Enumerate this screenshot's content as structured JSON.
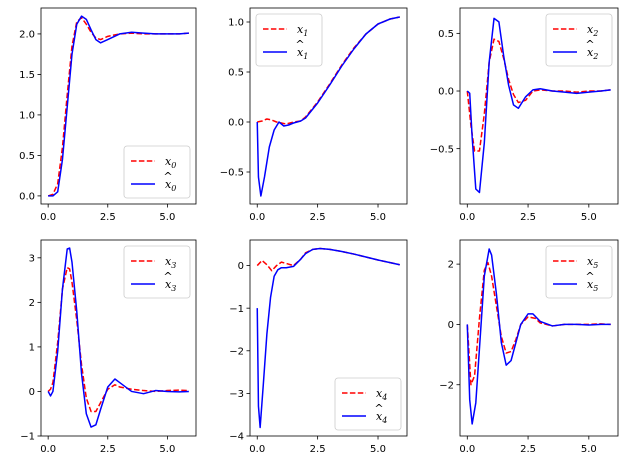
{
  "chart_data": [
    {
      "type": "line",
      "xlim": [
        -0.3,
        6.2
      ],
      "ylim": [
        -0.1,
        2.32
      ],
      "xticks": [
        0,
        2.5,
        5
      ],
      "xtick_labels": [
        "0.0",
        "2.5",
        "5.0"
      ],
      "yticks": [
        0,
        0.5,
        1.0,
        1.5,
        2.0
      ],
      "ytick_labels": [
        "0.0",
        "0.5",
        "1.0",
        "1.5",
        "2.0"
      ],
      "legend_position": "bottom-right",
      "series": [
        {
          "name": "x0",
          "label_base": "x",
          "label_sub": "0",
          "hat": false,
          "color": "#ff0000",
          "style": "dashed",
          "x": [
            0,
            0.2,
            0.4,
            0.6,
            0.8,
            1.0,
            1.2,
            1.4,
            1.6,
            1.8,
            2.0,
            2.2,
            2.5,
            3.0,
            3.5,
            4.0,
            4.5,
            5.0,
            5.5,
            5.9
          ],
          "y": [
            0,
            0.02,
            0.15,
            0.6,
            1.25,
            1.85,
            2.15,
            2.2,
            2.12,
            2.02,
            1.95,
            1.93,
            1.97,
            2.0,
            2.01,
            2.0,
            2.0,
            2.0,
            2.0,
            2.01
          ]
        },
        {
          "name": "x̂0",
          "label_base": "x",
          "label_sub": "0",
          "hat": true,
          "color": "#0000ff",
          "style": "solid",
          "x": [
            0,
            0.2,
            0.4,
            0.6,
            0.8,
            1.0,
            1.2,
            1.4,
            1.6,
            1.8,
            2.0,
            2.2,
            2.5,
            3.0,
            3.5,
            4.0,
            4.5,
            5.0,
            5.5,
            5.9
          ],
          "y": [
            0,
            0,
            0.05,
            0.45,
            1.1,
            1.75,
            2.12,
            2.22,
            2.18,
            2.05,
            1.93,
            1.89,
            1.93,
            2.0,
            2.02,
            2.01,
            2.0,
            2.0,
            2.0,
            2.01
          ]
        }
      ]
    },
    {
      "type": "line",
      "xlim": [
        -0.3,
        6.2
      ],
      "ylim": [
        -0.82,
        1.14
      ],
      "xticks": [
        0,
        2.5,
        5
      ],
      "xtick_labels": [
        "0.0",
        "2.5",
        "5.0"
      ],
      "yticks": [
        -0.5,
        0,
        0.5,
        1.0
      ],
      "ytick_labels": [
        "−0.5",
        "0.0",
        "0.5",
        "1.0"
      ],
      "legend_position": "top-left",
      "series": [
        {
          "name": "x1",
          "label_base": "x",
          "label_sub": "1",
          "hat": false,
          "color": "#ff0000",
          "style": "dashed",
          "x": [
            0,
            0.2,
            0.4,
            0.6,
            0.8,
            1.0,
            1.2,
            1.5,
            1.8,
            2.0,
            2.5,
            3.0,
            3.5,
            4.0,
            4.5,
            5.0,
            5.5,
            5.9
          ],
          "y": [
            0,
            0.01,
            0.03,
            0.02,
            0.0,
            -0.01,
            -0.02,
            0.0,
            0.01,
            0.05,
            0.2,
            0.38,
            0.57,
            0.74,
            0.88,
            0.98,
            1.03,
            1.05
          ]
        },
        {
          "name": "x̂1",
          "label_base": "x",
          "label_sub": "1",
          "hat": true,
          "color": "#0000ff",
          "style": "solid",
          "x": [
            0,
            0.05,
            0.15,
            0.3,
            0.5,
            0.7,
            0.9,
            1.1,
            1.3,
            1.5,
            1.8,
            2.0,
            2.5,
            3.0,
            3.5,
            4.0,
            4.5,
            5.0,
            5.5,
            5.9
          ],
          "y": [
            0,
            -0.55,
            -0.74,
            -0.55,
            -0.25,
            -0.08,
            0.0,
            -0.04,
            -0.03,
            -0.01,
            0.01,
            0.04,
            0.19,
            0.37,
            0.56,
            0.73,
            0.88,
            0.98,
            1.03,
            1.05
          ]
        }
      ]
    },
    {
      "type": "line",
      "xlim": [
        -0.3,
        6.2
      ],
      "ylim": [
        -0.98,
        0.72
      ],
      "xticks": [
        0,
        2.5,
        5
      ],
      "xtick_labels": [
        "0.0",
        "2.5",
        "5.0"
      ],
      "yticks": [
        -0.5,
        0,
        0.5
      ],
      "ytick_labels": [
        "−0.5",
        "0.0",
        "0.5"
      ],
      "legend_position": "top-right",
      "series": [
        {
          "name": "x2",
          "label_base": "x",
          "label_sub": "2",
          "hat": false,
          "color": "#ff0000",
          "style": "dashed",
          "x": [
            0,
            0.15,
            0.3,
            0.5,
            0.7,
            0.9,
            1.1,
            1.3,
            1.5,
            1.7,
            1.9,
            2.1,
            2.4,
            2.7,
            3.0,
            3.5,
            4.0,
            4.5,
            5.0,
            5.5,
            5.9
          ],
          "y": [
            0,
            -0.3,
            -0.52,
            -0.52,
            -0.2,
            0.25,
            0.45,
            0.43,
            0.28,
            0.1,
            -0.03,
            -0.1,
            -0.08,
            0.0,
            0.01,
            0.0,
            0.0,
            -0.01,
            0.0,
            0.0,
            0.01
          ]
        },
        {
          "name": "x̂2",
          "label_base": "x",
          "label_sub": "2",
          "hat": true,
          "color": "#0000ff",
          "style": "solid",
          "x": [
            0,
            0.1,
            0.2,
            0.35,
            0.5,
            0.7,
            0.9,
            1.1,
            1.3,
            1.5,
            1.7,
            1.9,
            2.1,
            2.4,
            2.7,
            3.0,
            3.5,
            4.0,
            4.5,
            5.0,
            5.5,
            5.9
          ],
          "y": [
            0,
            -0.02,
            -0.4,
            -0.85,
            -0.88,
            -0.45,
            0.25,
            0.63,
            0.6,
            0.3,
            0.05,
            -0.12,
            -0.15,
            -0.05,
            0.01,
            0.02,
            0.0,
            -0.01,
            -0.02,
            -0.01,
            0.0,
            0.01
          ]
        }
      ]
    },
    {
      "type": "line",
      "xlim": [
        -0.3,
        6.2
      ],
      "ylim": [
        -1.0,
        3.4
      ],
      "xticks": [
        0,
        2.5,
        5
      ],
      "xtick_labels": [
        "0.0",
        "2.5",
        "5.0"
      ],
      "yticks": [
        -1,
        0,
        1,
        2,
        3
      ],
      "ytick_labels": [
        "−1",
        "0",
        "1",
        "2",
        "3"
      ],
      "legend_position": "top-right",
      "series": [
        {
          "name": "x3",
          "label_base": "x",
          "label_sub": "3",
          "hat": false,
          "color": "#ff0000",
          "style": "dashed",
          "x": [
            0,
            0.1,
            0.2,
            0.4,
            0.6,
            0.8,
            0.9,
            1.0,
            1.2,
            1.4,
            1.6,
            1.8,
            2.0,
            2.2,
            2.5,
            2.8,
            3.0,
            3.5,
            4.0,
            4.5,
            5.0,
            5.5,
            5.9
          ],
          "y": [
            0,
            0.05,
            0.2,
            1.1,
            2.3,
            2.78,
            2.75,
            2.45,
            1.6,
            0.6,
            -0.15,
            -0.45,
            -0.45,
            -0.25,
            0.05,
            0.15,
            0.1,
            0.05,
            0.02,
            0.0,
            0.02,
            0.03,
            0.02
          ]
        },
        {
          "name": "x̂3",
          "label_base": "x",
          "label_sub": "3",
          "hat": true,
          "color": "#0000ff",
          "style": "solid",
          "x": [
            0,
            0.1,
            0.2,
            0.4,
            0.6,
            0.8,
            0.9,
            1.0,
            1.2,
            1.4,
            1.6,
            1.8,
            2.0,
            2.2,
            2.5,
            2.8,
            3.0,
            3.5,
            4.0,
            4.5,
            5.0,
            5.5,
            5.9
          ],
          "y": [
            0,
            -0.1,
            0.0,
            0.9,
            2.3,
            3.2,
            3.22,
            2.9,
            1.8,
            0.4,
            -0.5,
            -0.8,
            -0.75,
            -0.4,
            0.1,
            0.28,
            0.2,
            0.0,
            -0.05,
            0.02,
            0.0,
            -0.01,
            0.0
          ]
        }
      ]
    },
    {
      "type": "line",
      "xlim": [
        -0.3,
        6.2
      ],
      "ylim": [
        -4.0,
        0.6
      ],
      "xticks": [
        0,
        2.5,
        5
      ],
      "xtick_labels": [
        "0.0",
        "2.5",
        "5.0"
      ],
      "yticks": [
        -4,
        -3,
        -2,
        -1,
        0
      ],
      "ytick_labels": [
        "−4",
        "−3",
        "−2",
        "−1",
        "0"
      ],
      "legend_position": "bottom-right",
      "series": [
        {
          "name": "x4",
          "label_base": "x",
          "label_sub": "4",
          "hat": false,
          "color": "#ff0000",
          "style": "dashed",
          "x": [
            0,
            0.2,
            0.4,
            0.6,
            0.8,
            1.0,
            1.2,
            1.5,
            1.8,
            2.0,
            2.3,
            2.6,
            3.0,
            3.5,
            4.0,
            4.5,
            5.0,
            5.5,
            5.9
          ],
          "y": [
            0,
            0.12,
            0.02,
            -0.12,
            0.0,
            0.08,
            0.05,
            0.0,
            0.15,
            0.3,
            0.38,
            0.4,
            0.38,
            0.33,
            0.27,
            0.2,
            0.13,
            0.07,
            0.02
          ]
        },
        {
          "name": "x̂4",
          "label_base": "x",
          "label_sub": "4",
          "hat": true,
          "color": "#0000ff",
          "style": "solid",
          "x": [
            0,
            0.05,
            0.12,
            0.25,
            0.4,
            0.55,
            0.7,
            0.85,
            1.0,
            1.2,
            1.5,
            1.8,
            2.0,
            2.3,
            2.6,
            3.0,
            3.5,
            4.0,
            4.5,
            5.0,
            5.5,
            5.9
          ],
          "y": [
            -1.0,
            -3.3,
            -3.8,
            -2.8,
            -1.6,
            -0.75,
            -0.25,
            -0.1,
            -0.05,
            -0.05,
            -0.02,
            0.15,
            0.28,
            0.38,
            0.4,
            0.38,
            0.33,
            0.27,
            0.2,
            0.13,
            0.07,
            0.02
          ]
        }
      ]
    },
    {
      "type": "line",
      "xlim": [
        -0.3,
        6.2
      ],
      "ylim": [
        -3.7,
        2.8
      ],
      "xticks": [
        0,
        2.5,
        5
      ],
      "xtick_labels": [
        "0.0",
        "2.5",
        "5.0"
      ],
      "yticks": [
        -2,
        0,
        2
      ],
      "ytick_labels": [
        "−2",
        "0",
        "2"
      ],
      "legend_position": "top-right",
      "series": [
        {
          "name": "x5",
          "label_base": "x",
          "label_sub": "5",
          "hat": false,
          "color": "#ff0000",
          "style": "dashed",
          "x": [
            0,
            0.15,
            0.3,
            0.5,
            0.7,
            0.85,
            1.0,
            1.2,
            1.4,
            1.6,
            1.8,
            2.0,
            2.2,
            2.5,
            2.8,
            3.0,
            3.5,
            4.0,
            4.5,
            5.0,
            5.5,
            5.9
          ],
          "y": [
            0,
            -2.0,
            -1.7,
            0.2,
            1.8,
            2.05,
            1.6,
            0.6,
            -0.4,
            -0.95,
            -0.9,
            -0.5,
            0.0,
            0.25,
            0.2,
            0.05,
            -0.05,
            0.0,
            0.0,
            0.0,
            0.02,
            0.0
          ]
        },
        {
          "name": "x̂5",
          "label_base": "x",
          "label_sub": "5",
          "hat": true,
          "color": "#0000ff",
          "style": "solid",
          "x": [
            0,
            0.1,
            0.2,
            0.35,
            0.5,
            0.7,
            0.9,
            1.0,
            1.2,
            1.4,
            1.6,
            1.8,
            2.0,
            2.2,
            2.5,
            2.7,
            3.0,
            3.5,
            4.0,
            4.5,
            5.0,
            5.5,
            5.9
          ],
          "y": [
            0,
            -2.5,
            -3.3,
            -2.6,
            -0.8,
            1.6,
            2.5,
            2.3,
            1.0,
            -0.6,
            -1.35,
            -1.2,
            -0.6,
            0.0,
            0.35,
            0.35,
            0.1,
            -0.05,
            0.0,
            0.0,
            -0.02,
            0.0,
            0.0
          ]
        }
      ]
    }
  ]
}
